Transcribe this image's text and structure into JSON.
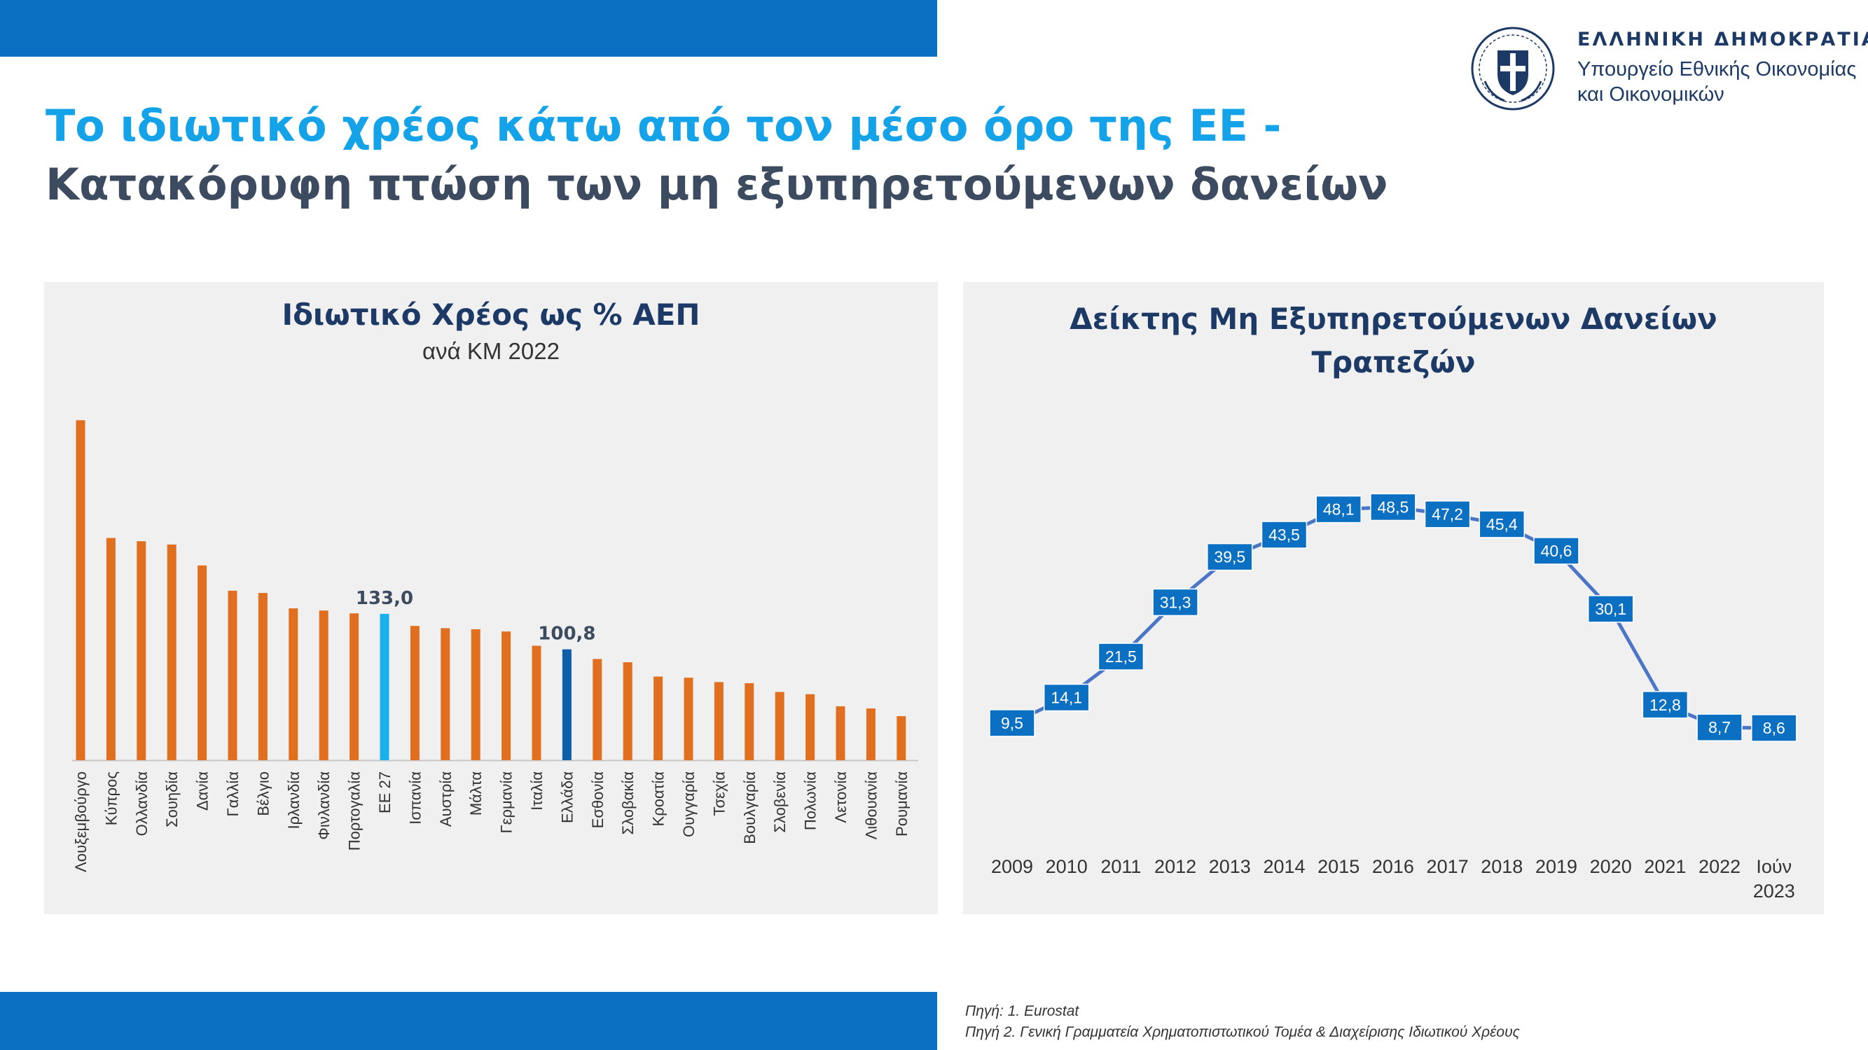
{
  "headline": {
    "line1": "Το ιδιωτικό χρέος κάτω από τον μέσο όρο της ΕΕ -",
    "line2": "Κατακόρυφη πτώση των μη εξυπηρετούμενων δανείων"
  },
  "ministry": {
    "republic": "ΕΛΛΗΝΙΚΗ ΔΗΜΟΚΡΑΤΙΑ",
    "name_line1": "Υπουργείο Εθνικής Οικονομίας",
    "name_line2": "και Οικονομικών"
  },
  "colors": {
    "brand_blue": "#0b6fc2",
    "headline_cyan": "#14a3e8",
    "headline_gray": "#3c4b5f",
    "bar_orange": "#e06f1f",
    "bar_eu": "#1ab0ec",
    "bar_greece": "#0e5ea8",
    "line_blue": "#4a76c5",
    "label_box": "#0b6fc2"
  },
  "sources": {
    "line1": "Πηγή: 1. Eurostat",
    "line2": "Πηγή 2. Γενική Γραμματεία Χρηματοπιστωτικού Τομέα & Διαχείρισης Ιδιωτικού Χρέους"
  },
  "chart_data": [
    {
      "type": "bar",
      "title": "Ιδιωτικό Χρέος ως % ΑΕΠ",
      "subtitle": "ανά ΚΜ 2022",
      "categories": [
        "Λουξεμβούργο",
        "Κύπρος",
        "Ολλανδία",
        "Σουηδία",
        "Δανία",
        "Γαλλία",
        "Βέλγιο",
        "Ιρλανδία",
        "Φινλανδία",
        "Πορτογαλία",
        "ΕΕ 27",
        "Ισπανία",
        "Αυστρία",
        "Μάλτα",
        "Γερμανία",
        "Ιταλία",
        "Ελλάδα",
        "Εσθονία",
        "Σλοβακία",
        "Κροατία",
        "Ουγγαρία",
        "Τσεχία",
        "Βουλγαρία",
        "Σλοβενία",
        "Πολωνία",
        "Λετονία",
        "Λιθουανία",
        "Ρουμανία"
      ],
      "values": [
        309.0,
        202.0,
        199.0,
        196.0,
        177.0,
        154.0,
        152.0,
        138.0,
        136.0,
        133.5,
        133.0,
        122.0,
        120.0,
        119.0,
        117.0,
        104.0,
        100.8,
        92.0,
        89.0,
        76.0,
        75.0,
        71.0,
        70.0,
        62.0,
        60.0,
        49.0,
        47.0,
        40.0
      ],
      "data_labels": [
        {
          "category": "ΕΕ 27",
          "text": "133,0"
        },
        {
          "category": "Ελλάδα",
          "text": "100,8"
        }
      ],
      "highlight": {
        "ΕΕ 27": "eu",
        "Ελλάδα": "greece"
      },
      "ylim": [
        0,
        320
      ],
      "grid": false
    },
    {
      "type": "line",
      "title_line1": "Δείκτης Μη Εξυπηρετούμενων Δανείων",
      "title_line2": "Τραπεζών",
      "x": [
        "2009",
        "2010",
        "2011",
        "2012",
        "2013",
        "2014",
        "2015",
        "2016",
        "2017",
        "2018",
        "2019",
        "2020",
        "2021",
        "2022",
        "Ιούν|2023"
      ],
      "values": [
        9.5,
        14.1,
        21.5,
        31.3,
        39.5,
        43.5,
        48.1,
        48.5,
        47.2,
        45.4,
        40.6,
        30.1,
        12.8,
        8.7,
        8.6
      ],
      "labels": [
        "9,5",
        "14,1",
        "21,5",
        "31,3",
        "39,5",
        "43,5",
        "48,1",
        "48,5",
        "47,2",
        "45,4",
        "40,6",
        "30,1",
        "12,8",
        "8,7",
        "8,6"
      ],
      "ylim": [
        0,
        55
      ],
      "grid": false
    }
  ]
}
